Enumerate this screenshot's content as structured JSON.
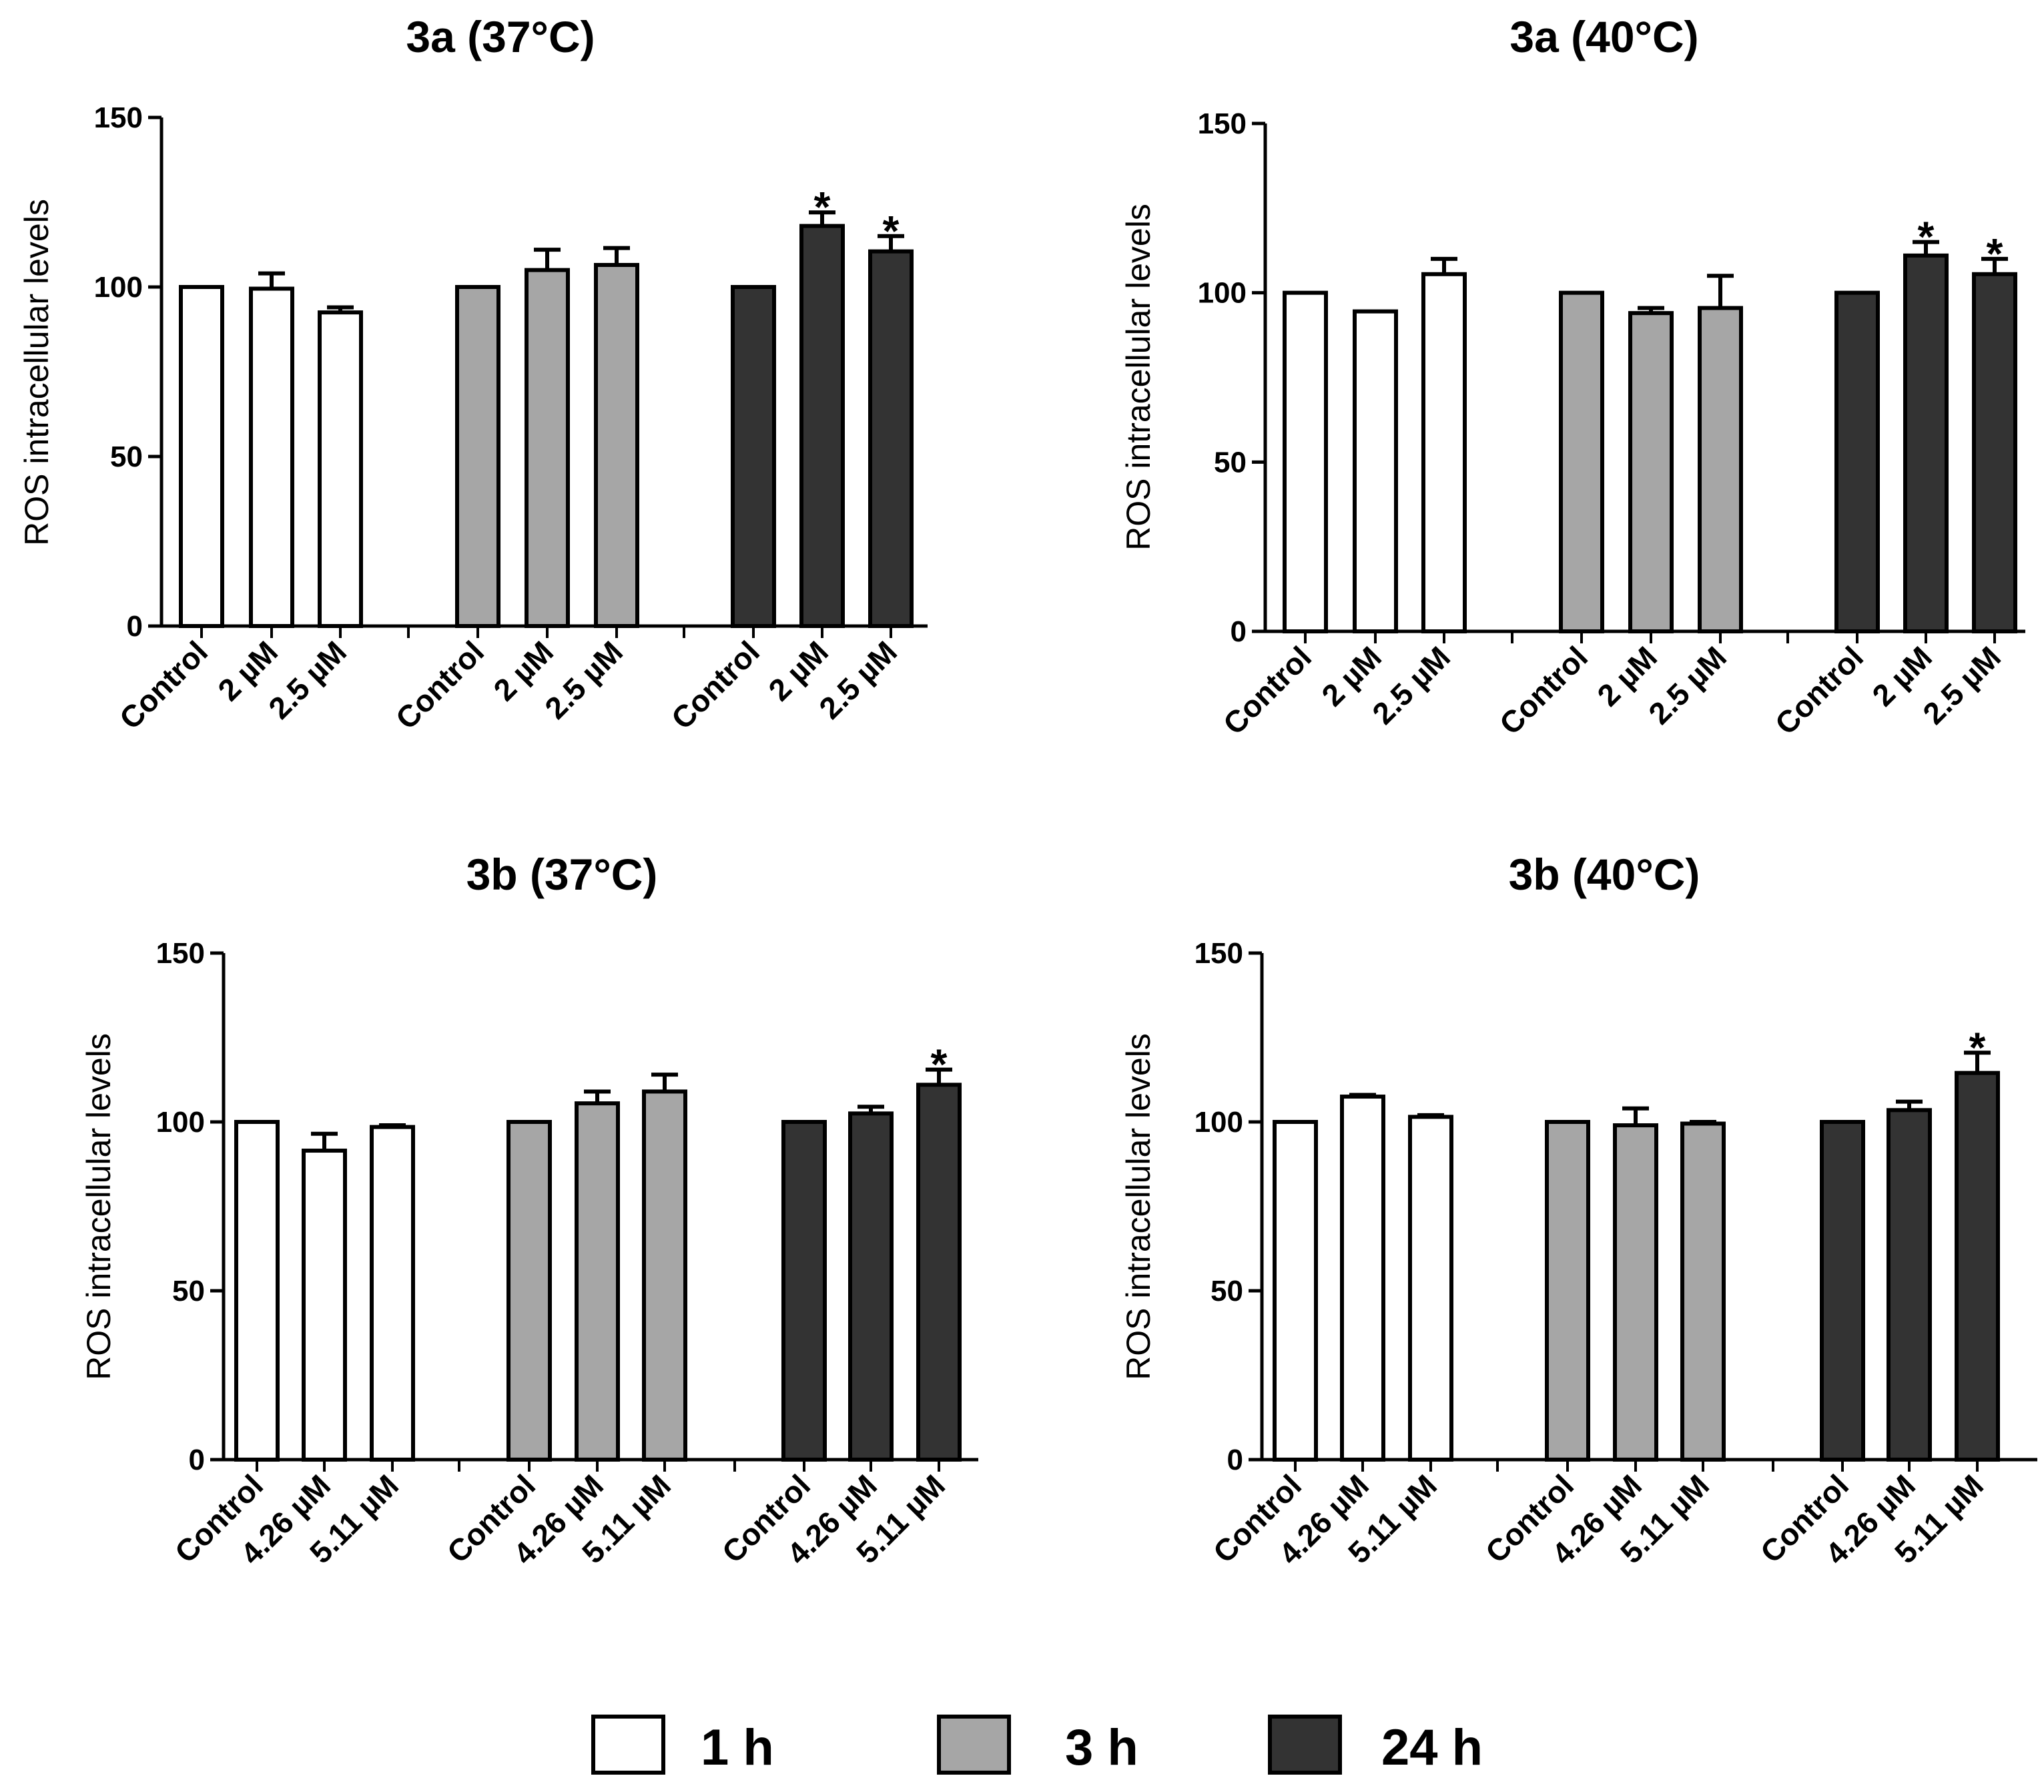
{
  "chart_data": [
    {
      "type": "bar",
      "title": "3a (37°C)",
      "ylabel": "ROS intracellular levels",
      "xlabel": "",
      "ylim": [
        0,
        150
      ],
      "yticks": [
        "0",
        "50",
        "100",
        "150"
      ],
      "categories": [
        "Control",
        "2 µM",
        "2.5 µM"
      ],
      "grid": false,
      "series": [
        {
          "name": "1 h",
          "values": [
            100,
            99.5,
            92.5
          ],
          "errors": [
            0,
            4.5,
            1.5
          ],
          "significant": [
            false,
            false,
            false
          ]
        },
        {
          "name": "3 h",
          "values": [
            100,
            105,
            106.5
          ],
          "errors": [
            0,
            6,
            5
          ],
          "significant": [
            false,
            false,
            false
          ]
        },
        {
          "name": "24 h",
          "values": [
            100,
            118,
            110.5
          ],
          "errors": [
            0,
            4,
            4.5
          ],
          "significant": [
            false,
            true,
            true
          ]
        }
      ]
    },
    {
      "type": "bar",
      "title": "3a (40°C)",
      "ylabel": "ROS intracellular levels",
      "xlabel": "",
      "ylim": [
        0,
        150
      ],
      "yticks": [
        "0",
        "50",
        "100",
        "150"
      ],
      "categories": [
        "Control",
        "2 µM",
        "2.5 µM"
      ],
      "grid": false,
      "series": [
        {
          "name": "1 h",
          "values": [
            100,
            94.5,
            105.5
          ],
          "errors": [
            0,
            0,
            4.5
          ],
          "significant": [
            false,
            false,
            false
          ]
        },
        {
          "name": "3 h",
          "values": [
            100,
            94,
            95.5
          ],
          "errors": [
            0,
            1.5,
            9.5
          ],
          "significant": [
            false,
            false,
            false
          ]
        },
        {
          "name": "24 h",
          "values": [
            100,
            111,
            105.5
          ],
          "errors": [
            0,
            4,
            4.5
          ],
          "significant": [
            false,
            true,
            true
          ]
        }
      ]
    },
    {
      "type": "bar",
      "title": "3b (37°C)",
      "ylabel": "ROS intracellular levels",
      "xlabel": "",
      "ylim": [
        0,
        150
      ],
      "yticks": [
        "0",
        "50",
        "100",
        "150"
      ],
      "categories": [
        "Control",
        "4.26 µM",
        "5.11 µM"
      ],
      "grid": false,
      "series": [
        {
          "name": "1 h",
          "values": [
            100,
            91.5,
            98.5
          ],
          "errors": [
            0,
            5,
            0.5
          ],
          "significant": [
            false,
            false,
            false
          ]
        },
        {
          "name": "3 h",
          "values": [
            100,
            105.5,
            109
          ],
          "errors": [
            0,
            3.5,
            5
          ],
          "significant": [
            false,
            false,
            false
          ]
        },
        {
          "name": "24 h",
          "values": [
            100,
            102.5,
            111
          ],
          "errors": [
            0,
            2,
            4.5
          ],
          "significant": [
            false,
            false,
            true
          ]
        }
      ]
    },
    {
      "type": "bar",
      "title": "3b (40°C)",
      "ylabel": "ROS intracellular levels",
      "xlabel": "",
      "ylim": [
        0,
        150
      ],
      "yticks": [
        "0",
        "50",
        "100",
        "150"
      ],
      "categories": [
        "Control",
        "4.26 µM",
        "5.11 µM"
      ],
      "grid": false,
      "series": [
        {
          "name": "1 h",
          "values": [
            100,
            107.5,
            101.5
          ],
          "errors": [
            0,
            0.5,
            0.5
          ],
          "significant": [
            false,
            false,
            false
          ]
        },
        {
          "name": "3 h",
          "values": [
            100,
            99,
            99.5
          ],
          "errors": [
            0,
            5,
            0.5
          ],
          "significant": [
            false,
            false,
            false
          ]
        },
        {
          "name": "24 h",
          "values": [
            100,
            103.5,
            114.5
          ],
          "errors": [
            0,
            2.5,
            6
          ],
          "significant": [
            false,
            false,
            true
          ]
        }
      ]
    }
  ],
  "legend": {
    "placement": "bottom-center",
    "items": [
      {
        "label": "1 h",
        "color": "#ffffff"
      },
      {
        "label": "3 h",
        "color": "#a6a6a6"
      },
      {
        "label": "24 h",
        "color": "#333333"
      }
    ]
  },
  "significance_marker": "*",
  "colors": {
    "axis": "#000000",
    "background": "#ffffff"
  }
}
